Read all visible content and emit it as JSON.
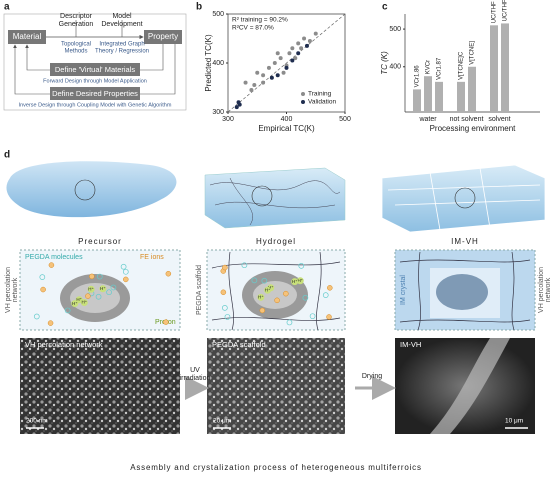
{
  "panel_labels": [
    "a",
    "b",
    "c",
    "d"
  ],
  "workflow": {
    "material": "Material",
    "property": "Property",
    "descriptor": [
      "Descriptor",
      "Generation"
    ],
    "descriptor_method": [
      "Topological",
      "Methods"
    ],
    "model": [
      "Model",
      "Development"
    ],
    "model_method": [
      "Integrated Graph",
      "Theory / Regression"
    ],
    "forward": "Define 'Virtual' Materials",
    "forward_note": "Forward Design through Model Application",
    "inverse": "Define Desired Properties",
    "inverse_note": "Inverse Design through Coupling Model with Genetic Algorithm"
  },
  "chart_data": [
    {
      "type": "scatter",
      "x_label": "Empirical TC(K)",
      "y_label": "Predicted TC(K)",
      "annotations": [
        "R² training = 90.2%",
        "R²CV = 87.0%"
      ],
      "xlim": [
        300,
        500
      ],
      "ylim": [
        300,
        500
      ],
      "xticks": [
        300,
        400,
        500
      ],
      "yticks": [
        300,
        400,
        500
      ],
      "legend": "lower right",
      "series": [
        {
          "name": "Training",
          "color": "#8c8c8c",
          "x": [
            330,
            340,
            350,
            360,
            370,
            380,
            390,
            400,
            405,
            410,
            420,
            425,
            430,
            440,
            450,
            415,
            395,
            360,
            345,
            385
          ],
          "values": [
            360,
            345,
            380,
            360,
            390,
            400,
            410,
            395,
            420,
            430,
            440,
            430,
            450,
            445,
            460,
            410,
            380,
            375,
            355,
            420
          ]
        },
        {
          "name": "Validation",
          "color": "#1f2d4f",
          "x": [
            315,
            320,
            375,
            385,
            410,
            420,
            435,
            400,
            318
          ],
          "values": [
            310,
            315,
            370,
            375,
            405,
            420,
            435,
            390,
            320
          ]
        }
      ]
    },
    {
      "type": "bar",
      "y_label": "TC (K)",
      "x_label": "Processing environment",
      "color": "#b0b0b0",
      "ylim": [
        280,
        540
      ],
      "yticks": [
        400,
        500
      ],
      "groups": [
        {
          "name": "water",
          "categories": [
            "VCr1.86",
            "KVCr",
            "VCr1.87"
          ],
          "values": [
            340,
            375,
            360
          ]
        },
        {
          "name": "not solvent",
          "categories": [
            "V[TCNE]C",
            "V[TCNE]"
          ],
          "values": [
            360,
            400
          ]
        },
        {
          "name": "solvent",
          "categories": [
            "UC/THF",
            "UC/THF0.25"
          ],
          "values": [
            510,
            515
          ]
        }
      ]
    }
  ],
  "process": {
    "stages": [
      "Precursor",
      "Hydrogel",
      "IM-VH"
    ],
    "legend": [
      "PEGDA molecules",
      "FE ions",
      "Proton"
    ],
    "ion": "H⁺",
    "side_left": [
      "VH percolation",
      "network"
    ],
    "side_scaffold": "PEGDA scaffold",
    "crystal": "IM crystal",
    "side_right": [
      "VH percolation",
      "network"
    ],
    "steps": [
      [
        "UV",
        "irradiation"
      ],
      [
        "Drying"
      ]
    ],
    "sem": [
      {
        "label": "VH percolation network",
        "scale": "200 nm"
      },
      {
        "label": "PEGDA scaffold",
        "scale": "20 μm"
      },
      {
        "label": "IM-VH",
        "scale": "10 μm"
      }
    ],
    "caption": "Assembly and crystalization process of heterogeneous multiferroics"
  }
}
